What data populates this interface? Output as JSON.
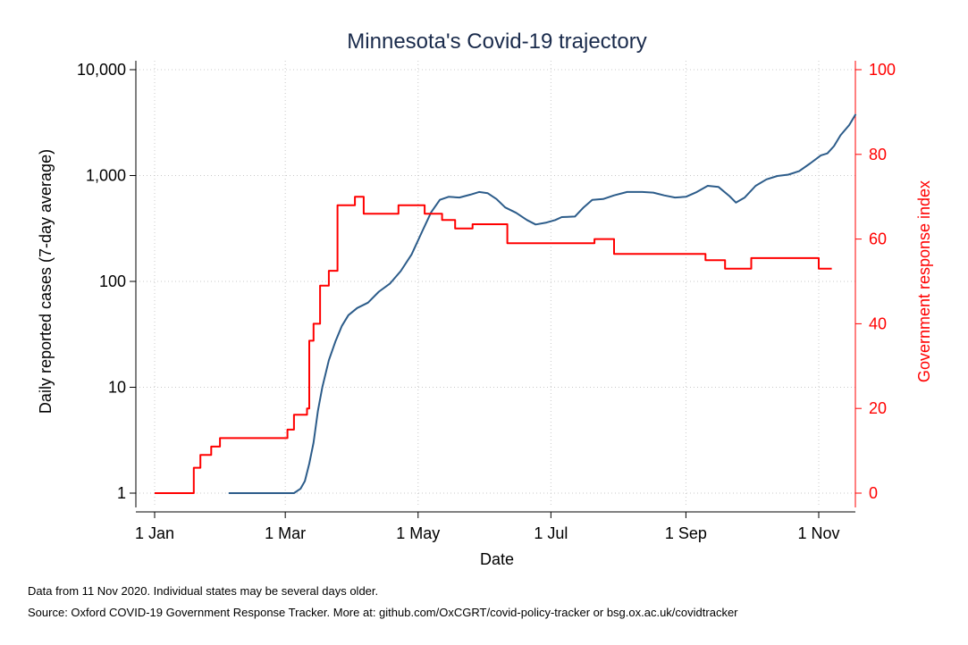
{
  "chart_data": {
    "type": "line",
    "title": "Minnesota's Covid-19 trajectory",
    "xlabel": "Date",
    "ylabel_left": "Daily reported cases (7-day average)",
    "ylabel_right": "Government response index",
    "x_ticks": [
      {
        "date": "2020-01-01",
        "label": "1 Jan"
      },
      {
        "date": "2020-03-01",
        "label": "1 Mar"
      },
      {
        "date": "2020-05-01",
        "label": "1 May"
      },
      {
        "date": "2020-07-01",
        "label": "1 Jul"
      },
      {
        "date": "2020-09-01",
        "label": "1 Sep"
      },
      {
        "date": "2020-11-01",
        "label": "1 Nov"
      }
    ],
    "y_left": {
      "scale": "log",
      "range": [
        1,
        10000
      ],
      "ticks": [
        {
          "value": 1,
          "label": "1"
        },
        {
          "value": 10,
          "label": "10"
        },
        {
          "value": 100,
          "label": "100"
        },
        {
          "value": 1000,
          "label": "1,000"
        },
        {
          "value": 10000,
          "label": "10,000"
        }
      ]
    },
    "y_right": {
      "scale": "linear",
      "range": [
        0,
        100
      ],
      "ticks": [
        {
          "value": 0,
          "label": "0"
        },
        {
          "value": 20,
          "label": "20"
        },
        {
          "value": 40,
          "label": "40"
        },
        {
          "value": 60,
          "label": "60"
        },
        {
          "value": 80,
          "label": "80"
        },
        {
          "value": 100,
          "label": "100"
        }
      ]
    },
    "grid": true,
    "series": [
      {
        "axis": "left",
        "color": "#2c5c8a",
        "step": false,
        "points": [
          [
            "2020-02-04",
            1
          ],
          [
            "2020-03-05",
            1
          ],
          [
            "2020-03-08",
            1.1
          ],
          [
            "2020-03-10",
            1.3
          ],
          [
            "2020-03-12",
            1.9
          ],
          [
            "2020-03-14",
            3
          ],
          [
            "2020-03-16",
            6
          ],
          [
            "2020-03-18",
            10
          ],
          [
            "2020-03-21",
            18
          ],
          [
            "2020-03-24",
            27
          ],
          [
            "2020-03-27",
            38
          ],
          [
            "2020-03-30",
            48
          ],
          [
            "2020-04-03",
            56
          ],
          [
            "2020-04-08",
            63
          ],
          [
            "2020-04-13",
            80
          ],
          [
            "2020-04-18",
            95
          ],
          [
            "2020-04-23",
            125
          ],
          [
            "2020-04-28",
            180
          ],
          [
            "2020-05-03",
            300
          ],
          [
            "2020-05-07",
            450
          ],
          [
            "2020-05-11",
            590
          ],
          [
            "2020-05-15",
            630
          ],
          [
            "2020-05-20",
            620
          ],
          [
            "2020-05-25",
            660
          ],
          [
            "2020-05-29",
            700
          ],
          [
            "2020-06-02",
            680
          ],
          [
            "2020-06-06",
            600
          ],
          [
            "2020-06-10",
            500
          ],
          [
            "2020-06-15",
            445
          ],
          [
            "2020-06-20",
            380
          ],
          [
            "2020-06-24",
            345
          ],
          [
            "2020-06-29",
            360
          ],
          [
            "2020-07-03",
            380
          ],
          [
            "2020-07-06",
            405
          ],
          [
            "2020-07-12",
            410
          ],
          [
            "2020-07-16",
            500
          ],
          [
            "2020-07-20",
            590
          ],
          [
            "2020-07-25",
            600
          ],
          [
            "2020-07-30",
            650
          ],
          [
            "2020-08-05",
            700
          ],
          [
            "2020-08-12",
            700
          ],
          [
            "2020-08-17",
            690
          ],
          [
            "2020-08-22",
            650
          ],
          [
            "2020-08-27",
            620
          ],
          [
            "2020-09-01",
            630
          ],
          [
            "2020-09-06",
            700
          ],
          [
            "2020-09-11",
            800
          ],
          [
            "2020-09-16",
            780
          ],
          [
            "2020-09-21",
            640
          ],
          [
            "2020-09-24",
            555
          ],
          [
            "2020-09-28",
            620
          ],
          [
            "2020-10-03",
            800
          ],
          [
            "2020-10-08",
            920
          ],
          [
            "2020-10-13",
            990
          ],
          [
            "2020-10-18",
            1020
          ],
          [
            "2020-10-23",
            1100
          ],
          [
            "2020-10-28",
            1300
          ],
          [
            "2020-11-02",
            1550
          ],
          [
            "2020-11-05",
            1620
          ],
          [
            "2020-11-08",
            1900
          ],
          [
            "2020-11-11",
            2400
          ],
          [
            "2020-11-15",
            3000
          ],
          [
            "2020-11-18",
            3800
          ]
        ]
      },
      {
        "axis": "right",
        "color": "#ff0000",
        "step": true,
        "points": [
          [
            "2020-01-01",
            0
          ],
          [
            "2020-01-19",
            6
          ],
          [
            "2020-01-22",
            9
          ],
          [
            "2020-01-27",
            11
          ],
          [
            "2020-01-31",
            13
          ],
          [
            "2020-03-02",
            15
          ],
          [
            "2020-03-05",
            18.5
          ],
          [
            "2020-03-11",
            20
          ],
          [
            "2020-03-12",
            36
          ],
          [
            "2020-03-14",
            40
          ],
          [
            "2020-03-17",
            49
          ],
          [
            "2020-03-21",
            52.5
          ],
          [
            "2020-03-25",
            68
          ],
          [
            "2020-04-02",
            70
          ],
          [
            "2020-04-06",
            66
          ],
          [
            "2020-04-22",
            68
          ],
          [
            "2020-05-04",
            66
          ],
          [
            "2020-05-12",
            64.5
          ],
          [
            "2020-05-18",
            62.5
          ],
          [
            "2020-05-26",
            63.5
          ],
          [
            "2020-06-11",
            59
          ],
          [
            "2020-07-21",
            60
          ],
          [
            "2020-07-30",
            56.5
          ],
          [
            "2020-09-10",
            55
          ],
          [
            "2020-09-19",
            53
          ],
          [
            "2020-10-01",
            55.5
          ],
          [
            "2020-11-01",
            53
          ],
          [
            "2020-11-07",
            53
          ]
        ]
      }
    ]
  },
  "notes": {
    "line1": "Data from 11 Nov 2020. Individual states may be several days older.",
    "line2": "Source: Oxford COVID-19 Government Response Tracker. More at: github.com/OxCGRT/covid-policy-tracker or bsg.ox.ac.uk/covidtracker"
  }
}
